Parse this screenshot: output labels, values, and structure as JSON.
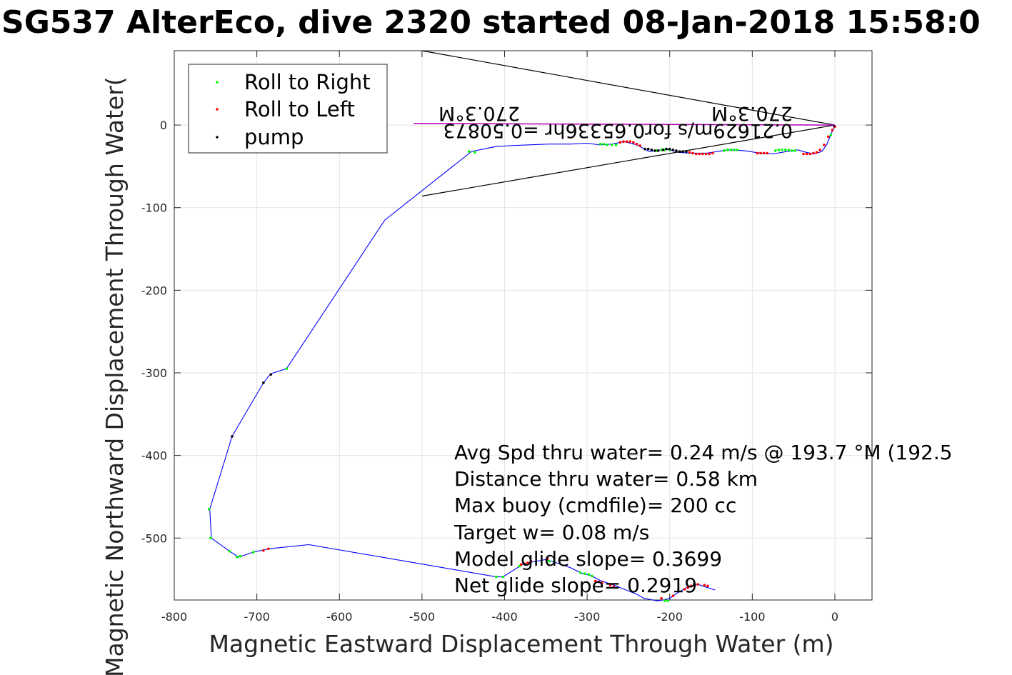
{
  "chart_data": {
    "type": "line",
    "title": "SG537 AlterEco, dive 2320 started 08-Jan-2018 15:58:0",
    "xlabel": "Magnetic Eastward Displacement Through Water (m)",
    "ylabel": "Magnetic Northward Displacement Through Water(",
    "xlim": [
      -800,
      45
    ],
    "ylim": [
      -575,
      90
    ],
    "xticks": [
      -800,
      -700,
      -600,
      -500,
      -400,
      -300,
      -200,
      -100,
      0
    ],
    "xtick_labels": [
      "-800",
      "-700",
      "-600",
      "-500",
      "-400",
      "-300",
      "-200",
      "-100",
      "0"
    ],
    "yticks": [
      0,
      -100,
      -200,
      -300,
      -400,
      -500
    ],
    "ytick_labels": [
      "0",
      "-100",
      "-200",
      "-300",
      "-400",
      "-500"
    ],
    "grid": true,
    "legend_position": "top-left",
    "legend": [
      {
        "label": "Roll to Right",
        "color": "#00ff00"
      },
      {
        "label": "Roll to Left",
        "color": "#ff0000"
      },
      {
        "label": "pump",
        "color": "#000000"
      }
    ],
    "track_color": "#0000ff",
    "surface_color": "#b000b0",
    "track": {
      "x": [
        0,
        -5,
        -10,
        -16,
        -25,
        -35,
        -45,
        -58,
        -75,
        -90,
        -110,
        -130,
        -155,
        -175,
        -190,
        -200,
        -208,
        -215,
        -225,
        -240,
        -255,
        -270,
        -285,
        -300,
        -320,
        -345,
        -370,
        -395,
        -410,
        -425,
        -440,
        -545,
        -664,
        -680,
        -684,
        -692,
        -730,
        -757,
        -755,
        -733,
        -722,
        -704,
        -690,
        -686,
        -637,
        -410,
        -402,
        -378,
        -372,
        -350,
        -337,
        -320,
        -308,
        -294,
        -283,
        -270,
        -255,
        -240,
        -231,
        -215,
        -208,
        -200,
        -190,
        -180,
        -166,
        -154,
        -145
      ],
      "y": [
        0,
        -12,
        -24,
        -32,
        -35,
        -33,
        -30,
        -32,
        -35,
        -34,
        -31,
        -30,
        -34,
        -34,
        -33,
        -30,
        -29,
        -31,
        -32,
        -24,
        -20,
        -23,
        -24,
        -22,
        -23,
        -23,
        -24,
        -25,
        -26,
        -29,
        -32,
        -115,
        -295,
        -300,
        -302,
        -312,
        -377,
        -465,
        -500,
        -516,
        -523,
        -517,
        -514,
        -513,
        -508,
        -547,
        -547,
        -532,
        -530,
        -526,
        -530,
        -536,
        -542,
        -546,
        -552,
        -556,
        -562,
        -568,
        -573,
        -576,
        -575,
        -573,
        -566,
        -560,
        -556,
        -560,
        -563
      ]
    },
    "roll_right": {
      "x": [
        -5,
        -48,
        -52,
        -56,
        -60,
        -64,
        -68,
        -72,
        -118,
        -122,
        -126,
        -130,
        -134,
        -200,
        -206,
        -210,
        -216,
        -265,
        -270,
        -276,
        -280,
        -284,
        -436,
        -443,
        -664,
        -758,
        -756,
        -733,
        -724,
        -720,
        -704,
        -410,
        -402,
        -382,
        -346,
        -340,
        -308,
        -303,
        -298,
        -294,
        -206,
        -202
      ],
      "y": [
        -12,
        -31,
        -31,
        -30,
        -30,
        -30,
        -30,
        -31,
        -30,
        -30,
        -30,
        -30,
        -31,
        -30,
        -30,
        -30,
        -31,
        -24,
        -24,
        -24,
        -23,
        -23,
        -33,
        -32,
        -295,
        -465,
        -500,
        -516,
        -523,
        -522,
        -517,
        -547,
        -547,
        -534,
        -528,
        -528,
        -542,
        -543,
        -544,
        -546,
        -576,
        -576
      ]
    },
    "roll_left": {
      "x": [
        0,
        -3,
        -8,
        -13,
        -18,
        -22,
        -26,
        -30,
        -34,
        -38,
        -82,
        -86,
        -90,
        -94,
        -148,
        -152,
        -156,
        -160,
        -164,
        -168,
        -172,
        -176,
        -236,
        -240,
        -244,
        -248,
        -252,
        -256,
        -260,
        -692,
        -686,
        -380,
        -376,
        -372,
        -368,
        -348,
        -290,
        -286,
        -282,
        -272,
        -268,
        -210,
        -196,
        -182,
        -178,
        -174,
        -170,
        -166,
        -158,
        -154
      ],
      "y": [
        -2,
        -6,
        -14,
        -24,
        -30,
        -33,
        -34,
        -35,
        -35,
        -35,
        -34,
        -34,
        -34,
        -34,
        -34,
        -35,
        -35,
        -35,
        -35,
        -35,
        -34,
        -33,
        -25,
        -23,
        -21,
        -20,
        -20,
        -20,
        -21,
        -515,
        -513,
        -532,
        -531,
        -530,
        -528,
        -525,
        -552,
        -553,
        -554,
        -557,
        -559,
        -573,
        -570,
        -562,
        -560,
        -558,
        -557,
        -556,
        -557,
        -558
      ]
    },
    "pump": {
      "x": [
        -1,
        -180,
        -184,
        -188,
        -192,
        -196,
        -200,
        -204,
        -208,
        -214,
        -218,
        -222,
        -226,
        -230,
        -683,
        -692,
        -730
      ],
      "y": [
        -1,
        -32,
        -32,
        -32,
        -31,
        -30,
        -29,
        -29,
        -30,
        -31,
        -31,
        -30,
        -29,
        -29,
        -302,
        -312,
        -377
      ]
    },
    "surface_segment": {
      "x": [
        0,
        -510
      ],
      "y": [
        0,
        2
      ]
    },
    "heading_lines": [
      {
        "x": [
          0,
          -500
        ],
        "y": [
          0,
          90
        ]
      },
      {
        "x": [
          0,
          -500
        ],
        "y": [
          0,
          -86
        ]
      }
    ],
    "inverted_labels": {
      "heading_near": "270.3°M",
      "heading_far": "270.3°M",
      "drift": "0.21629m/s for0.65336hr =0.50873"
    },
    "stats": [
      "Avg Spd thru water=  0.24 m/s @ 193.7 °M (192.5",
      "Distance thru water=  0.58 km",
      "Max buoy (cmdfile)= 200 cc",
      "Target w= 0.08 m/s",
      "Model glide slope= 0.3699",
      "Net glide slope= 0.2919"
    ]
  }
}
